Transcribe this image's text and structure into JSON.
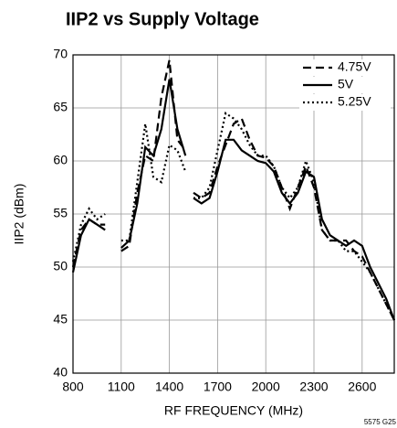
{
  "chart_data": {
    "type": "line",
    "title": "IIP2 vs Supply Voltage",
    "xlabel": "RF FREQUENCY (MHz)",
    "ylabel": "IIP2 (dBm)",
    "note": "5575 G25",
    "x": [
      800,
      850,
      900,
      950,
      1000,
      1050,
      1100,
      1150,
      1200,
      1250,
      1300,
      1350,
      1400,
      1450,
      1500,
      1525,
      1550,
      1600,
      1650,
      1700,
      1750,
      1800,
      1850,
      1900,
      1950,
      2000,
      2050,
      2100,
      2150,
      2200,
      2250,
      2300,
      2350,
      2400,
      2450,
      2500,
      2550,
      2600,
      2650,
      2700,
      2750,
      2800
    ],
    "series": [
      {
        "name": "4.75V",
        "color": "#000000",
        "dash": "9,5",
        "values": [
          50,
          53.5,
          54.5,
          54,
          54,
          null,
          51.5,
          52,
          57,
          60.5,
          60,
          66,
          69.5,
          62,
          61,
          null,
          57,
          56.5,
          57,
          59.5,
          61.5,
          63.5,
          64,
          62,
          60.5,
          60.3,
          59.5,
          57.5,
          55.5,
          57.5,
          59.5,
          57.5,
          53.5,
          52.5,
          52.5,
          52.5,
          51.5,
          51,
          49.5,
          48,
          46.5,
          45
        ]
      },
      {
        "name": "5V",
        "color": "#000000",
        "dash": "none",
        "values": [
          49.5,
          53,
          54.5,
          54,
          53.5,
          null,
          51.8,
          52.5,
          56,
          61.3,
          60.5,
          63,
          67.7,
          63,
          60.5,
          null,
          56.5,
          56,
          56.5,
          59,
          62,
          62,
          61,
          60.5,
          60,
          59.8,
          59,
          57,
          56,
          57,
          59,
          58.5,
          54.5,
          53,
          52.5,
          52,
          52.5,
          52,
          50,
          48.5,
          47,
          45
        ]
      },
      {
        "name": "5.25V",
        "color": "#000000",
        "dash": "2,3",
        "values": [
          50.5,
          54,
          55.5,
          54.5,
          55,
          null,
          52.5,
          52.5,
          58,
          63.5,
          58.5,
          58,
          61.5,
          61,
          59,
          null,
          56.5,
          56.5,
          57.5,
          61,
          64.5,
          64,
          63,
          61.5,
          60.5,
          60.5,
          59.5,
          57.5,
          56.5,
          57.5,
          60,
          58,
          53.5,
          52.5,
          52.5,
          51.5,
          51.5,
          50.5,
          49.5,
          48,
          46.5,
          45
        ]
      }
    ],
    "xlim": [
      800,
      2800
    ],
    "ylim": [
      40,
      70
    ],
    "xticks": [
      800,
      1100,
      1400,
      1700,
      2000,
      2300,
      2600
    ],
    "yticks": [
      40,
      45,
      50,
      55,
      60,
      65,
      70
    ],
    "grid": true,
    "legend": "upper right"
  }
}
